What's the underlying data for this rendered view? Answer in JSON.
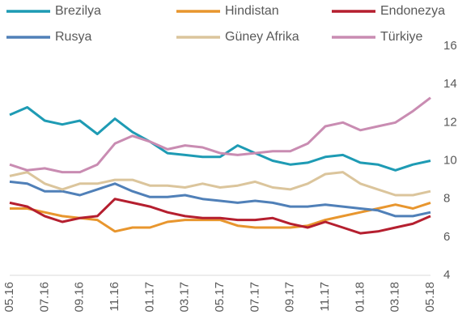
{
  "chart_data": {
    "type": "line",
    "categories": [
      "05.16",
      null,
      "07.16",
      null,
      "09.16",
      null,
      "11.16",
      null,
      "01.17",
      null,
      "03.17",
      null,
      "05.17",
      null,
      "07.17",
      null,
      "09.17",
      null,
      "11.17",
      null,
      "01.18",
      null,
      "03.18",
      null,
      "05.18"
    ],
    "series": [
      {
        "name": "Brezilya",
        "color": "#1e9bb4",
        "values": [
          12.4,
          12.8,
          12.1,
          11.9,
          12.1,
          11.4,
          12.2,
          11.5,
          11.0,
          10.4,
          10.3,
          10.2,
          10.2,
          10.8,
          10.4,
          10.0,
          9.8,
          9.9,
          10.2,
          10.3,
          9.9,
          9.8,
          9.5,
          9.8,
          10.0
        ]
      },
      {
        "name": "Hindistan",
        "color": "#e8962e",
        "values": [
          7.5,
          7.5,
          7.3,
          7.1,
          7.0,
          6.9,
          6.3,
          6.5,
          6.5,
          6.8,
          6.9,
          6.9,
          6.9,
          6.6,
          6.5,
          6.5,
          6.5,
          6.6,
          6.9,
          7.1,
          7.3,
          7.5,
          7.7,
          7.5,
          7.8
        ]
      },
      {
        "name": "Endonezya",
        "color": "#b51f2f",
        "values": [
          7.8,
          7.6,
          7.1,
          6.8,
          7.0,
          7.1,
          8.0,
          7.8,
          7.6,
          7.3,
          7.1,
          7.0,
          7.0,
          6.9,
          6.9,
          7.0,
          6.7,
          6.5,
          6.8,
          6.5,
          6.2,
          6.3,
          6.5,
          6.7,
          7.1
        ]
      },
      {
        "name": "Rusya",
        "color": "#5080b8",
        "values": [
          8.9,
          8.8,
          8.4,
          8.4,
          8.2,
          8.5,
          8.8,
          8.4,
          8.1,
          8.1,
          8.2,
          8.0,
          7.9,
          7.8,
          7.9,
          7.8,
          7.6,
          7.6,
          7.7,
          7.6,
          7.5,
          7.4,
          7.1,
          7.1,
          7.3
        ]
      },
      {
        "name": "Güney Afrika",
        "color": "#dbc59c",
        "values": [
          9.2,
          9.4,
          8.8,
          8.5,
          8.8,
          8.8,
          9.0,
          9.0,
          8.7,
          8.7,
          8.6,
          8.8,
          8.6,
          8.7,
          8.9,
          8.6,
          8.5,
          8.8,
          9.3,
          9.4,
          8.8,
          8.5,
          8.2,
          8.2,
          8.4
        ]
      },
      {
        "name": "Türkiye",
        "color": "#c98cb2",
        "values": [
          9.8,
          9.5,
          9.6,
          9.4,
          9.4,
          9.8,
          10.9,
          11.3,
          11.0,
          10.6,
          10.8,
          10.7,
          10.4,
          10.3,
          10.4,
          10.5,
          10.5,
          10.9,
          11.8,
          12.0,
          11.6,
          11.8,
          12.0,
          12.6,
          13.3
        ]
      }
    ],
    "ylim": [
      4,
      16
    ],
    "yticks": [
      4,
      6,
      8,
      10,
      12,
      14,
      16
    ],
    "y_axis_side": "right",
    "legend": "top"
  }
}
